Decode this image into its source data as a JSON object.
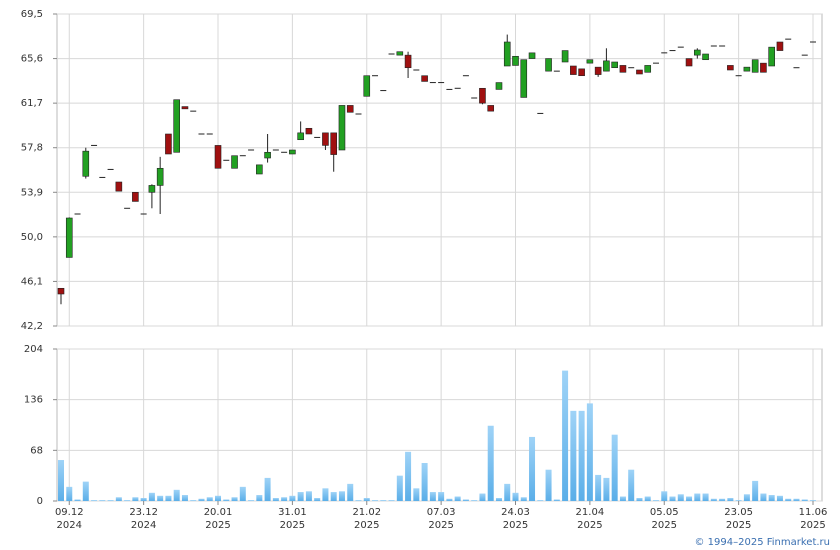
{
  "chart_data": {
    "type": "candlestick",
    "copyright": "© 1994–2025 Finmarket.ru",
    "categories": [
      null,
      "09.12",
      null,
      null,
      null,
      null,
      null,
      null,
      null,
      null,
      "23.12",
      null,
      null,
      null,
      null,
      null,
      null,
      null,
      null,
      "20.01",
      null,
      null,
      null,
      null,
      null,
      null,
      null,
      null,
      "31.01",
      null,
      null,
      null,
      null,
      null,
      null,
      null,
      null,
      "21.02",
      null,
      null,
      null,
      null,
      null,
      null,
      null,
      null,
      "07.03",
      null,
      null,
      null,
      null,
      null,
      null,
      null,
      null,
      "24.03",
      null,
      null,
      null,
      null,
      null,
      null,
      null,
      null,
      "21.04",
      null,
      null,
      null,
      null,
      null,
      null,
      null,
      null,
      "05.05",
      null,
      null,
      null,
      null,
      null,
      null,
      null,
      null,
      "23.05",
      null,
      null,
      null,
      null,
      null,
      null,
      null,
      null,
      "11.06"
    ],
    "category_years": [
      null,
      "2024",
      null,
      null,
      null,
      null,
      null,
      null,
      null,
      null,
      "2024",
      null,
      null,
      null,
      null,
      null,
      null,
      null,
      null,
      "2025",
      null,
      null,
      null,
      null,
      null,
      null,
      null,
      null,
      "2025",
      null,
      null,
      null,
      null,
      null,
      null,
      null,
      null,
      "2025",
      null,
      null,
      null,
      null,
      null,
      null,
      null,
      null,
      "2025",
      null,
      null,
      null,
      null,
      null,
      null,
      null,
      null,
      "2025",
      null,
      null,
      null,
      null,
      null,
      null,
      null,
      null,
      "2025",
      null,
      null,
      null,
      null,
      null,
      null,
      null,
      null,
      "2025",
      null,
      null,
      null,
      null,
      null,
      null,
      null,
      null,
      "2025",
      null,
      null,
      null,
      null,
      null,
      null,
      null,
      null,
      "2025"
    ],
    "open": [
      45.5,
      48.2,
      52.0,
      55.3,
      58.0,
      55.2,
      55.9,
      54.8,
      52.5,
      53.9,
      52.0,
      53.9,
      54.5,
      59.0,
      57.4,
      61.4,
      61.0,
      59.0,
      59.0,
      58.0,
      56.7,
      56.0,
      57.1,
      57.6,
      55.5,
      56.9,
      57.6,
      57.4,
      57.25,
      58.5,
      59.5,
      58.7,
      59.1,
      59.1,
      57.6,
      61.5,
      60.75,
      62.3,
      64.1,
      62.8,
      66.0,
      65.9,
      65.9,
      64.6,
      64.1,
      63.5,
      63.5,
      62.9,
      63.0,
      64.1,
      62.15,
      63.0,
      61.5,
      62.9,
      64.95,
      65.0,
      62.2,
      65.6,
      60.8,
      64.5,
      64.5,
      65.3,
      64.95,
      64.7,
      65.2,
      64.85,
      64.5,
      64.8,
      65.0,
      64.8,
      64.6,
      64.4,
      65.2,
      66.1,
      66.3,
      66.6,
      65.6,
      65.9,
      65.5,
      66.7,
      66.7,
      65.0,
      64.1,
      64.5,
      64.4,
      65.2,
      64.95,
      67.05,
      67.3,
      64.8,
      65.9,
      67.05
    ],
    "high": [
      45.5,
      51.7,
      52.0,
      57.8,
      58.0,
      55.2,
      55.9,
      54.8,
      52.5,
      53.9,
      52.0,
      54.6,
      57.0,
      59.0,
      62.0,
      61.4,
      61.0,
      59.0,
      59.0,
      58.0,
      56.7,
      57.1,
      57.1,
      57.6,
      56.3,
      59.0,
      57.6,
      57.4,
      57.6,
      60.1,
      59.5,
      58.7,
      59.1,
      59.1,
      61.5,
      61.5,
      60.75,
      64.1,
      64.1,
      62.8,
      66.0,
      66.2,
      66.2,
      64.6,
      64.1,
      63.5,
      63.5,
      62.9,
      63.0,
      64.1,
      62.15,
      63.0,
      61.5,
      63.5,
      67.7,
      65.8,
      65.5,
      66.1,
      60.8,
      65.6,
      64.5,
      66.3,
      64.95,
      64.7,
      65.5,
      64.85,
      66.5,
      65.3,
      65.0,
      64.8,
      64.6,
      65.0,
      65.2,
      66.1,
      66.3,
      66.6,
      65.6,
      66.5,
      66.0,
      66.7,
      66.7,
      65.0,
      64.1,
      64.85,
      65.5,
      65.2,
      66.6,
      67.05,
      67.3,
      64.8,
      65.9,
      67.05
    ],
    "low": [
      44.1,
      48.2,
      52.0,
      55.1,
      58.0,
      55.2,
      55.9,
      54.0,
      52.5,
      53.1,
      52.0,
      52.5,
      52.0,
      57.25,
      57.4,
      61.2,
      61.0,
      59.0,
      59.0,
      56.0,
      56.7,
      56.0,
      57.1,
      57.6,
      55.5,
      56.5,
      57.6,
      57.4,
      57.25,
      58.5,
      59.0,
      58.7,
      57.6,
      55.7,
      57.6,
      60.9,
      60.75,
      62.3,
      64.1,
      62.8,
      66.0,
      65.9,
      63.9,
      64.6,
      63.6,
      63.5,
      63.5,
      62.9,
      63.0,
      64.1,
      62.15,
      61.6,
      61.0,
      62.9,
      64.95,
      65.0,
      62.2,
      65.6,
      60.8,
      64.5,
      64.5,
      65.3,
      64.2,
      64.1,
      65.2,
      64.0,
      64.5,
      64.8,
      64.4,
      64.8,
      64.25,
      64.4,
      65.2,
      66.1,
      66.3,
      66.6,
      64.95,
      65.6,
      65.5,
      66.7,
      66.7,
      64.6,
      64.1,
      64.5,
      64.4,
      64.4,
      64.95,
      66.3,
      67.3,
      64.8,
      65.9,
      67.05
    ],
    "close": [
      45.0,
      51.65,
      52.0,
      57.5,
      58.0,
      55.2,
      55.9,
      54.0,
      52.5,
      53.1,
      52.0,
      54.5,
      56.0,
      57.25,
      62.0,
      61.2,
      61.0,
      59.0,
      59.0,
      56.0,
      56.7,
      57.1,
      57.1,
      57.6,
      56.3,
      57.4,
      57.6,
      57.4,
      57.6,
      59.1,
      59.0,
      58.7,
      58.0,
      57.2,
      61.5,
      60.9,
      60.75,
      64.1,
      64.1,
      62.8,
      66.0,
      66.2,
      64.8,
      64.6,
      63.6,
      63.5,
      63.5,
      62.9,
      63.0,
      64.1,
      62.15,
      61.7,
      61.0,
      63.5,
      67.05,
      65.8,
      65.5,
      66.1,
      60.8,
      65.6,
      64.5,
      66.3,
      64.2,
      64.1,
      65.5,
      64.2,
      65.4,
      65.3,
      64.4,
      64.8,
      64.25,
      65.0,
      65.2,
      66.1,
      66.3,
      66.6,
      64.95,
      66.35,
      66.0,
      66.7,
      66.7,
      64.6,
      64.1,
      64.85,
      65.5,
      64.4,
      66.6,
      66.3,
      67.3,
      64.8,
      65.9,
      67.05
    ],
    "volume": [
      55,
      19,
      2,
      26,
      1,
      1,
      1,
      5,
      1,
      5,
      4,
      11,
      7,
      7,
      15,
      8,
      1,
      3,
      5,
      7,
      2,
      5,
      19,
      1,
      8,
      31,
      4,
      5,
      7,
      12,
      13,
      4,
      17,
      12,
      13,
      23,
      1,
      4,
      1,
      1,
      1,
      34,
      66,
      17,
      51,
      12,
      12,
      3,
      6,
      2,
      1,
      10,
      101,
      4,
      23,
      11,
      5,
      86,
      1,
      42,
      2,
      175,
      121,
      121,
      131,
      35,
      31,
      89,
      6,
      42,
      4,
      6,
      1,
      13,
      6,
      9,
      6,
      10,
      10,
      3,
      3,
      4,
      1,
      9,
      27,
      10,
      8,
      7,
      3,
      3,
      2,
      1
    ],
    "up_color": "#22a022",
    "down_color": "#a01010",
    "volume_color": "#7cc0ee",
    "ylim": [
      42.2,
      69.5
    ],
    "yticks": [
      {
        "value": 42.2,
        "label": "42,2"
      },
      {
        "value": 46.1,
        "label": "46,1"
      },
      {
        "value": 50.0,
        "label": "50,0"
      },
      {
        "value": 53.9,
        "label": "53,9"
      },
      {
        "value": 57.8,
        "label": "57,8"
      },
      {
        "value": 61.7,
        "label": "61,7"
      },
      {
        "value": 65.6,
        "label": "65,6"
      },
      {
        "value": 69.5,
        "label": "69,5"
      }
    ],
    "volume_ylim": [
      0,
      204
    ],
    "volume_yticks": [
      0,
      68,
      136,
      204
    ],
    "grid": true
  }
}
